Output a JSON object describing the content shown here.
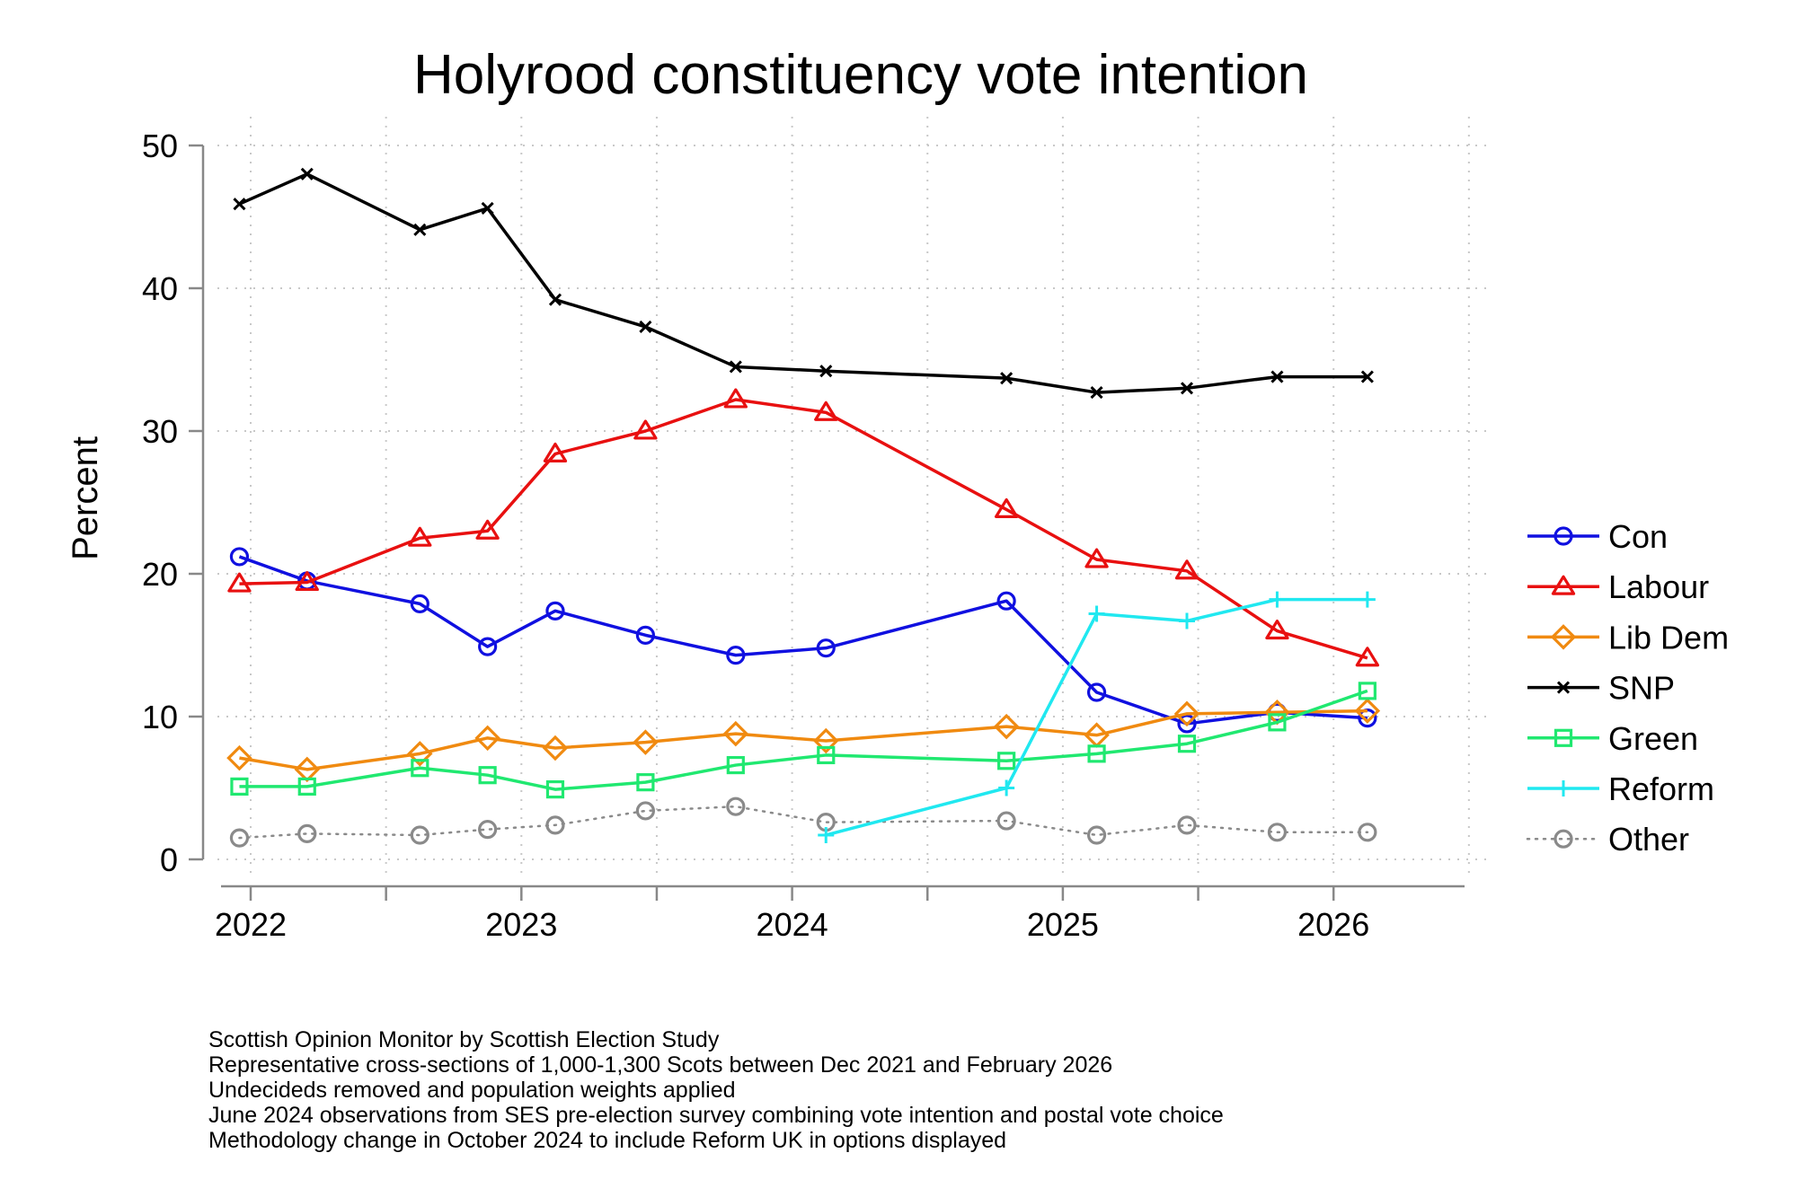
{
  "chart_data": {
    "type": "line",
    "title": "Holyrood constituency vote intention",
    "xlabel": "",
    "ylabel": "Percent",
    "x_ticks": [
      "2022",
      "2023",
      "2024",
      "2025",
      "2026"
    ],
    "y_ticks": [
      0,
      10,
      20,
      30,
      40,
      50
    ],
    "xlim": [
      "2021-09",
      "2026-07"
    ],
    "ylim": [
      0,
      50
    ],
    "grid": true,
    "legend_placement": "right",
    "series": [
      {
        "name": "Con",
        "color": "#1010e0",
        "marker": "circle",
        "line": "solid",
        "x": [
          "2021-12",
          "2022-03",
          "2022-08",
          "2022-11",
          "2023-02",
          "2023-06",
          "2023-10",
          "2024-02",
          "2024-10",
          "2025-02",
          "2025-06",
          "2025-10",
          "2026-02"
        ],
        "values": [
          21.2,
          19.5,
          17.9,
          14.9,
          17.4,
          15.7,
          14.3,
          14.8,
          18.1,
          11.7,
          9.5,
          10.3,
          9.9
        ]
      },
      {
        "name": "Labour",
        "color": "#e81010",
        "marker": "triangle",
        "line": "solid",
        "x": [
          "2021-12",
          "2022-03",
          "2022-08",
          "2022-11",
          "2023-02",
          "2023-06",
          "2023-10",
          "2024-02",
          "2024-10",
          "2025-02",
          "2025-06",
          "2025-10",
          "2026-02"
        ],
        "values": [
          19.3,
          19.4,
          22.5,
          23.0,
          28.4,
          30.0,
          32.2,
          31.3,
          24.5,
          21.0,
          20.2,
          16.0,
          14.1
        ]
      },
      {
        "name": "Lib Dem",
        "color": "#f08a10",
        "marker": "diamond",
        "line": "solid",
        "x": [
          "2021-12",
          "2022-03",
          "2022-08",
          "2022-11",
          "2023-02",
          "2023-06",
          "2023-10",
          "2024-02",
          "2024-10",
          "2025-02",
          "2025-06",
          "2025-10",
          "2026-02"
        ],
        "values": [
          7.1,
          6.3,
          7.4,
          8.5,
          7.8,
          8.2,
          8.8,
          8.3,
          9.3,
          8.7,
          10.2,
          10.3,
          10.4
        ]
      },
      {
        "name": "SNP",
        "color": "#000000",
        "marker": "x",
        "line": "solid",
        "x": [
          "2021-12",
          "2022-03",
          "2022-08",
          "2022-11",
          "2023-02",
          "2023-06",
          "2023-10",
          "2024-02",
          "2024-10",
          "2025-02",
          "2025-06",
          "2025-10",
          "2026-02"
        ],
        "values": [
          45.9,
          48.0,
          44.1,
          45.6,
          39.2,
          37.3,
          34.5,
          34.2,
          33.7,
          32.7,
          33.0,
          33.8,
          33.8
        ]
      },
      {
        "name": "Green",
        "color": "#20e870",
        "marker": "square",
        "line": "solid",
        "x": [
          "2021-12",
          "2022-03",
          "2022-08",
          "2022-11",
          "2023-02",
          "2023-06",
          "2023-10",
          "2024-02",
          "2024-10",
          "2025-02",
          "2025-06",
          "2025-10",
          "2026-02"
        ],
        "values": [
          5.1,
          5.1,
          6.4,
          5.9,
          4.9,
          5.4,
          6.6,
          7.3,
          6.9,
          7.4,
          8.1,
          9.6,
          11.8
        ]
      },
      {
        "name": "Reform",
        "color": "#20e8f0",
        "marker": "plus",
        "line": "solid",
        "x": [
          "2024-02",
          "2024-10",
          "2025-02",
          "2025-06",
          "2025-10",
          "2026-02"
        ],
        "values": [
          1.7,
          5.0,
          17.2,
          16.7,
          18.2,
          18.2
        ]
      },
      {
        "name": "Other",
        "color": "#8a8a8a",
        "marker": "circle",
        "line": "dotted",
        "x": [
          "2021-12",
          "2022-03",
          "2022-08",
          "2022-11",
          "2023-02",
          "2023-06",
          "2023-10",
          "2024-02",
          "2024-10",
          "2025-02",
          "2025-06",
          "2025-10",
          "2026-02"
        ],
        "values": [
          1.5,
          1.8,
          1.7,
          2.1,
          2.4,
          3.4,
          3.7,
          2.6,
          2.7,
          1.7,
          2.4,
          1.9,
          1.9
        ]
      }
    ]
  },
  "notes": [
    "Scottish Opinion Monitor by Scottish Election Study",
    "Representative cross-sections of 1,000-1,300 Scots between Dec 2021 and February 2026",
    "Undecideds removed and population weights applied",
    "June 2024 observations from SES pre-election survey combining vote intention and postal vote choice",
    "Methodology change in October 2024 to include Reform UK in options displayed"
  ]
}
